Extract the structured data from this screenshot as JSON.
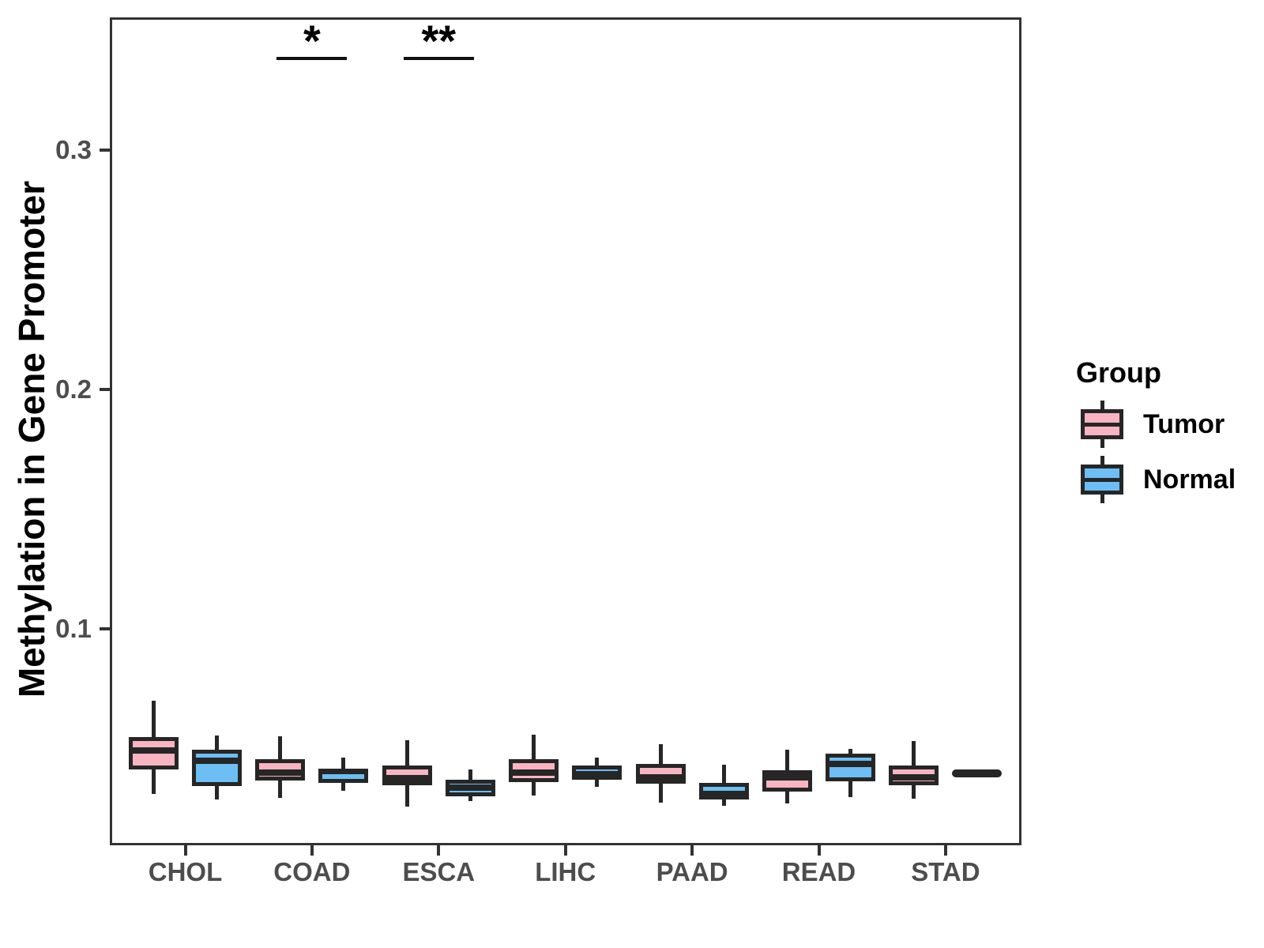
{
  "figure": {
    "background": "#ffffff"
  },
  "y_axis": {
    "title": "Methylation in Gene Promoter",
    "tick_values": [
      0.1,
      0.2,
      0.3
    ],
    "tick_labels": [
      "0.1",
      "0.2",
      "0.3"
    ]
  },
  "x_axis": {
    "categories": [
      "CHOL",
      "COAD",
      "ESCA",
      "LIHC",
      "PAAD",
      "READ",
      "STAD"
    ]
  },
  "legend": {
    "title": "Group",
    "items": [
      {
        "label": "Tumor",
        "fill": "#F9B4C2"
      },
      {
        "label": "Normal",
        "fill": "#6CBEF4"
      }
    ]
  },
  "significance": [
    {
      "category": "COAD",
      "label": "*"
    },
    {
      "category": "ESCA",
      "label": "**"
    }
  ],
  "colors": {
    "box_border": "#262626",
    "panel_border": "#333333",
    "tick_text": "#4d4d4d",
    "tumor_fill": "#F9B4C2",
    "normal_fill": "#6CBEF4"
  },
  "chart_data": {
    "type": "boxplot",
    "title": "",
    "xlabel": "",
    "ylabel": "Methylation in Gene Promoter",
    "ylim": [
      0.01,
      0.355
    ],
    "yticks": [
      0.1,
      0.2,
      0.3
    ],
    "grid": false,
    "legend_position": "right",
    "categories": [
      "CHOL",
      "COAD",
      "ESCA",
      "LIHC",
      "PAAD",
      "READ",
      "STAD"
    ],
    "series": [
      {
        "name": "Tumor",
        "fill": "#F9B4C2",
        "boxes": [
          {
            "category": "CHOL",
            "min": 0.031,
            "q1": 0.0413,
            "median": 0.0493,
            "q3": 0.0547,
            "max": 0.0701
          },
          {
            "category": "COAD",
            "min": 0.0293,
            "q1": 0.0367,
            "median": 0.0399,
            "q3": 0.0455,
            "max": 0.055
          },
          {
            "category": "ESCA",
            "min": 0.0258,
            "q1": 0.0348,
            "median": 0.0377,
            "q3": 0.043,
            "max": 0.0534
          },
          {
            "category": "LIHC",
            "min": 0.0304,
            "q1": 0.0361,
            "median": 0.0399,
            "q3": 0.0455,
            "max": 0.0559
          },
          {
            "category": "PAAD",
            "min": 0.0273,
            "q1": 0.0353,
            "median": 0.038,
            "q3": 0.0435,
            "max": 0.0517
          },
          {
            "category": "READ",
            "min": 0.0271,
            "q1": 0.032,
            "median": 0.0381,
            "q3": 0.0408,
            "max": 0.0496
          },
          {
            "category": "STAD",
            "min": 0.0291,
            "q1": 0.0346,
            "median": 0.0378,
            "q3": 0.043,
            "max": 0.0531
          }
        ]
      },
      {
        "name": "Normal",
        "fill": "#6CBEF4",
        "boxes": [
          {
            "category": "CHOL",
            "min": 0.0287,
            "q1": 0.0342,
            "median": 0.045,
            "q3": 0.0495,
            "max": 0.0553
          },
          {
            "category": "COAD",
            "min": 0.0325,
            "q1": 0.0355,
            "median": 0.0405,
            "q3": 0.0415,
            "max": 0.0462
          },
          {
            "category": "ESCA",
            "min": 0.0281,
            "q1": 0.0301,
            "median": 0.0335,
            "q3": 0.0371,
            "max": 0.0411
          },
          {
            "category": "LIHC",
            "min": 0.0341,
            "q1": 0.0368,
            "median": 0.0393,
            "q3": 0.043,
            "max": 0.0462
          },
          {
            "category": "PAAD",
            "min": 0.0262,
            "q1": 0.0287,
            "median": 0.031,
            "q3": 0.0356,
            "max": 0.0433
          },
          {
            "category": "READ",
            "min": 0.0298,
            "q1": 0.0364,
            "median": 0.0435,
            "q3": 0.0479,
            "max": 0.0498
          },
          {
            "category": "STAD",
            "min": 0.0395,
            "q1": 0.0396,
            "median": 0.0397,
            "q3": 0.0398,
            "max": 0.0399
          }
        ]
      }
    ],
    "annotations": [
      {
        "category": "COAD",
        "text": "*"
      },
      {
        "category": "ESCA",
        "text": "**"
      }
    ]
  }
}
